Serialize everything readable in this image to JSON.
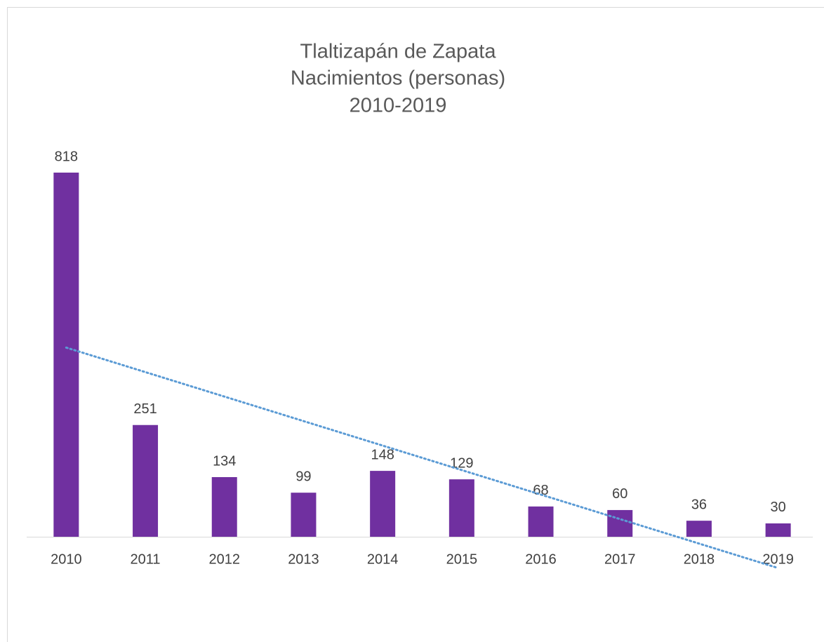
{
  "chart_data": {
    "type": "bar",
    "title": [
      "Tlaltizapán de Zapata",
      "Nacimientos (personas)",
      "2010-2019"
    ],
    "categories": [
      "2010",
      "2011",
      "2012",
      "2013",
      "2014",
      "2015",
      "2016",
      "2017",
      "2018",
      "2019"
    ],
    "values": [
      818,
      251,
      134,
      99,
      148,
      129,
      68,
      60,
      36,
      30
    ],
    "color": "#7030a0",
    "data_labels": true,
    "trendline": {
      "kind": "linear",
      "color": "#5b9bd5"
    }
  }
}
